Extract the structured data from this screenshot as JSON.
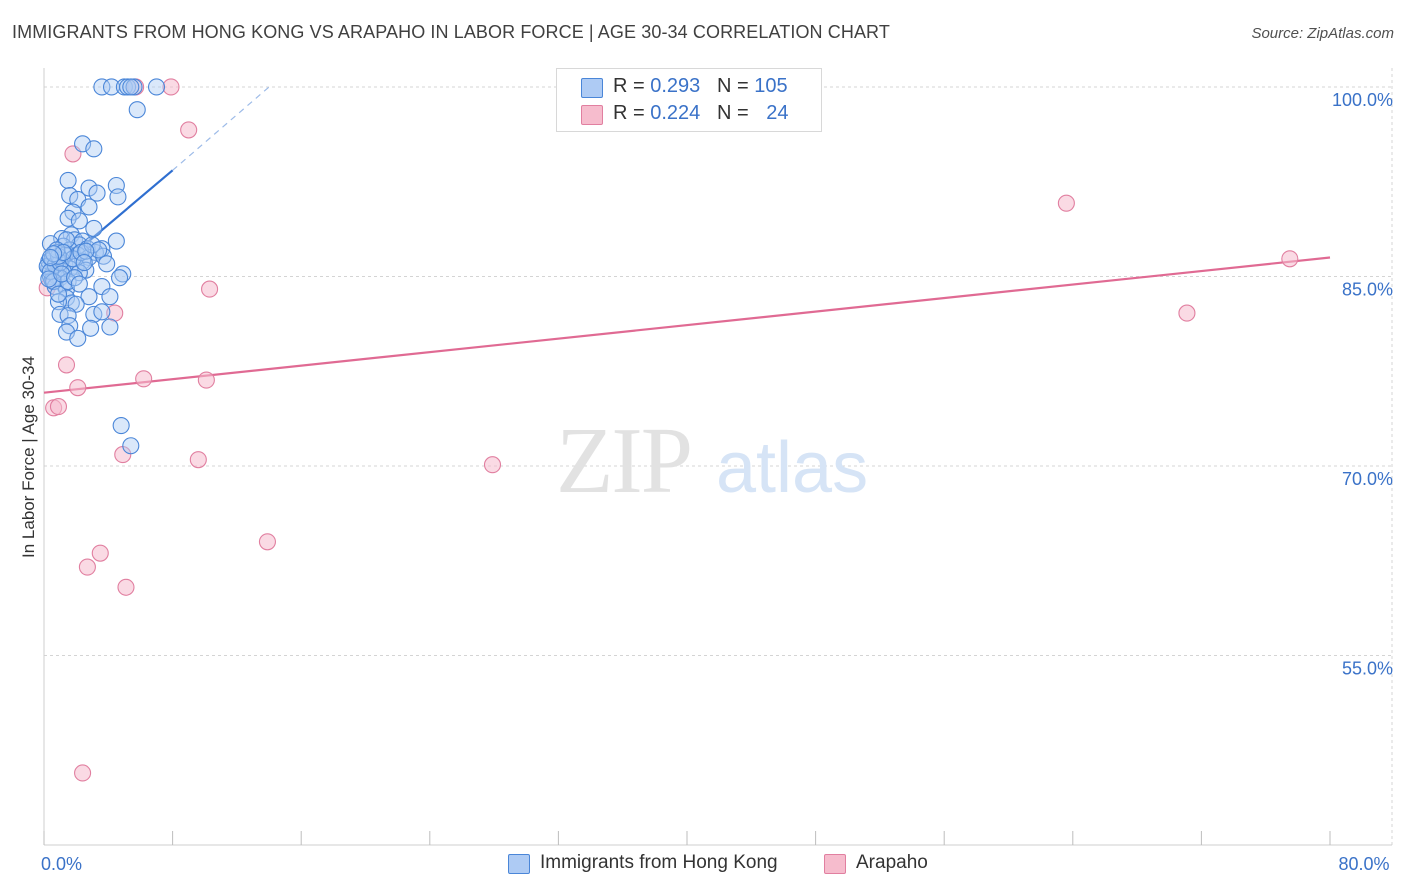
{
  "title": "IMMIGRANTS FROM HONG KONG VS ARAPAHO IN LABOR FORCE | AGE 30-34 CORRELATION CHART",
  "source": "Source: ZipAtlas.com",
  "watermark": {
    "zip": "ZIP",
    "atlas": "atlas"
  },
  "legend": {
    "series1": {
      "r_label": "R = ",
      "r_value": "0.293",
      "n_label": "N = ",
      "n_value": "105"
    },
    "series2": {
      "r_label": "R = ",
      "r_value": "0.224",
      "n_label": "N = ",
      "n_value": "24"
    }
  },
  "colors": {
    "blue_fill": "#aecbf4",
    "blue_stroke": "#4a86d8",
    "blue_line": "#2f6fd0",
    "pink_fill": "#f6bccd",
    "pink_stroke": "#e17fa0",
    "pink_line": "#e06a93",
    "axis_label": "#3a72c8",
    "grid": "#d4d4d4"
  },
  "chart_data": {
    "type": "scatter",
    "title": "IMMIGRANTS FROM HONG KONG VS ARAPAHO IN LABOR FORCE | AGE 30-34 CORRELATION CHART",
    "xlabel": "",
    "ylabel": "In Labor Force | Age 30-34",
    "xlim": [
      0,
      80
    ],
    "ylim": [
      40,
      101.5
    ],
    "x_tick_labels": [
      {
        "value": 0,
        "label": "0.0%"
      },
      {
        "value": 80,
        "label": "80.0%"
      }
    ],
    "y_tick_labels": [
      {
        "value": 100,
        "label": "100.0%"
      },
      {
        "value": 85,
        "label": "85.0%"
      },
      {
        "value": 70,
        "label": "70.0%"
      },
      {
        "value": 55,
        "label": "55.0%"
      }
    ],
    "legend_position": "top-center",
    "series": [
      {
        "name": "Immigrants from Hong Kong",
        "color": "#4a86d8",
        "R": 0.293,
        "N": 105,
        "trend": {
          "x0": 0,
          "y0": 84.8,
          "x1": 8.0,
          "y1": 93.4,
          "dash_to_x": 14.0,
          "dash_to_y": 100.0
        },
        "points": [
          [
            3.6,
            100
          ],
          [
            4.2,
            100
          ],
          [
            5.0,
            100
          ],
          [
            5.2,
            100
          ],
          [
            5.6,
            100
          ],
          [
            7.0,
            100
          ],
          [
            5.4,
            100
          ],
          [
            5.8,
            98.2
          ],
          [
            2.4,
            95.5
          ],
          [
            3.1,
            95.1
          ],
          [
            1.5,
            92.6
          ],
          [
            4.5,
            92.2
          ],
          [
            2.8,
            92.0
          ],
          [
            3.3,
            91.6
          ],
          [
            1.6,
            91.4
          ],
          [
            4.6,
            91.3
          ],
          [
            2.1,
            91.1
          ],
          [
            2.8,
            90.5
          ],
          [
            1.8,
            90.1
          ],
          [
            1.5,
            89.6
          ],
          [
            2.2,
            89.4
          ],
          [
            3.1,
            88.8
          ],
          [
            1.7,
            88.3
          ],
          [
            1.1,
            88.0
          ],
          [
            1.9,
            87.9
          ],
          [
            2.4,
            87.8
          ],
          [
            4.5,
            87.8
          ],
          [
            0.4,
            87.6
          ],
          [
            1.2,
            87.4
          ],
          [
            2.2,
            87.5
          ],
          [
            2.7,
            87.2
          ],
          [
            3.6,
            87.2
          ],
          [
            1.6,
            87.1
          ],
          [
            0.8,
            86.9
          ],
          [
            1.3,
            86.7
          ],
          [
            2.1,
            86.7
          ],
          [
            3.2,
            86.9
          ],
          [
            2.8,
            86.5
          ],
          [
            3.7,
            86.6
          ],
          [
            0.6,
            86.5
          ],
          [
            1.1,
            86.3
          ],
          [
            2.4,
            86.2
          ],
          [
            0.5,
            86.1
          ],
          [
            1.3,
            85.9
          ],
          [
            2.0,
            85.8
          ],
          [
            0.3,
            85.7
          ],
          [
            0.9,
            85.6
          ],
          [
            1.6,
            85.6
          ],
          [
            2.6,
            85.5
          ],
          [
            0.6,
            85.4
          ],
          [
            1.2,
            85.4
          ],
          [
            2.2,
            85.3
          ],
          [
            4.9,
            85.2
          ],
          [
            0.4,
            85.0
          ],
          [
            0.8,
            85.0
          ],
          [
            1.0,
            84.9
          ],
          [
            4.7,
            84.9
          ],
          [
            0.5,
            84.7
          ],
          [
            1.2,
            84.4
          ],
          [
            3.6,
            84.2
          ],
          [
            0.7,
            84.2
          ],
          [
            1.4,
            84.0
          ],
          [
            2.8,
            83.4
          ],
          [
            1.4,
            83.3
          ],
          [
            4.1,
            83.4
          ],
          [
            1.7,
            82.9
          ],
          [
            2.0,
            82.8
          ],
          [
            0.9,
            83.0
          ],
          [
            3.1,
            82.0
          ],
          [
            1.0,
            82.0
          ],
          [
            3.6,
            82.2
          ],
          [
            1.5,
            81.9
          ],
          [
            1.6,
            81.1
          ],
          [
            2.9,
            80.9
          ],
          [
            4.1,
            81.0
          ],
          [
            1.4,
            80.6
          ],
          [
            2.1,
            80.1
          ],
          [
            0.3,
            86.2
          ],
          [
            0.2,
            85.8
          ],
          [
            0.5,
            86.4
          ],
          [
            0.7,
            85.9
          ],
          [
            0.4,
            85.4
          ],
          [
            1.0,
            86.1
          ],
          [
            0.6,
            84.6
          ],
          [
            1.8,
            86.4
          ],
          [
            2.3,
            86.9
          ],
          [
            3.0,
            87.5
          ],
          [
            3.4,
            87.1
          ],
          [
            1.4,
            87.9
          ],
          [
            0.9,
            86.6
          ],
          [
            1.5,
            84.6
          ],
          [
            2.6,
            87.0
          ],
          [
            0.3,
            84.8
          ],
          [
            1.1,
            85.2
          ],
          [
            1.9,
            84.9
          ],
          [
            3.9,
            86.0
          ],
          [
            0.8,
            87.1
          ],
          [
            2.5,
            86.1
          ],
          [
            1.2,
            86.9
          ],
          [
            0.6,
            86.8
          ],
          [
            0.4,
            86.5
          ],
          [
            4.8,
            73.2
          ],
          [
            5.4,
            71.6
          ],
          [
            0.9,
            83.6
          ],
          [
            2.2,
            84.4
          ]
        ]
      },
      {
        "name": "Arapaho",
        "color": "#e17fa0",
        "R": 0.224,
        "N": 24,
        "trend": {
          "x0": 0,
          "y0": 75.8,
          "x1": 80,
          "y1": 86.5
        },
        "points": [
          [
            0.2,
            84.1
          ],
          [
            5.7,
            100
          ],
          [
            7.9,
            100
          ],
          [
            9.0,
            96.6
          ],
          [
            1.8,
            94.7
          ],
          [
            1.4,
            78.0
          ],
          [
            2.1,
            76.2
          ],
          [
            6.2,
            76.9
          ],
          [
            10.1,
            76.8
          ],
          [
            0.6,
            74.6
          ],
          [
            0.9,
            74.7
          ],
          [
            4.9,
            70.9
          ],
          [
            9.6,
            70.5
          ],
          [
            10.3,
            84.0
          ],
          [
            4.4,
            82.1
          ],
          [
            13.9,
            64.0
          ],
          [
            3.5,
            63.1
          ],
          [
            2.7,
            62.0
          ],
          [
            5.1,
            60.4
          ],
          [
            2.4,
            45.7
          ],
          [
            27.9,
            70.1
          ],
          [
            63.6,
            90.8
          ],
          [
            71.1,
            82.1
          ],
          [
            77.5,
            86.4
          ]
        ]
      }
    ]
  },
  "bottom_legend": {
    "series1_label": "Immigrants from Hong Kong",
    "series2_label": "Arapaho"
  }
}
